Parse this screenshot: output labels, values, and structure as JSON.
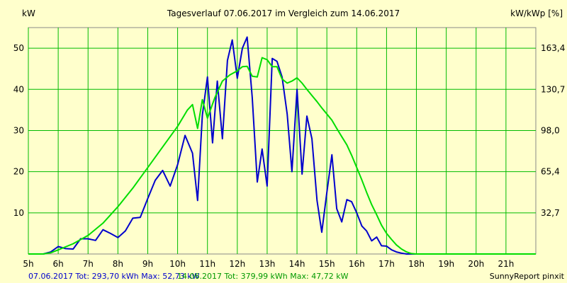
{
  "chart_data": {
    "type": "line",
    "title": "Tagesverlauf 07.06.2017 im Vergleich zum 14.06.2017",
    "ylabel_left": "kW",
    "ylabel_right": "kW/kWp [%]",
    "credit": "SunnyReport pinxit",
    "x_range": [
      5,
      22
    ],
    "x_ticks": [
      5,
      6,
      7,
      8,
      9,
      10,
      11,
      12,
      13,
      14,
      15,
      16,
      17,
      18,
      19,
      20,
      21
    ],
    "x_tick_labels": [
      "5h",
      "6h",
      "7h",
      "8h",
      "9h",
      "10h",
      "11h",
      "12h",
      "13h",
      "14h",
      "15h",
      "16h",
      "17h",
      "18h",
      "19h",
      "20h",
      "21h"
    ],
    "y_range": [
      0,
      55
    ],
    "y_ticks": [
      10,
      20,
      30,
      40,
      50
    ],
    "y_tick_labels": [
      "10",
      "20",
      "30",
      "40",
      "50"
    ],
    "y_right_ticks": [
      10,
      20,
      30,
      40,
      50
    ],
    "y_right_labels": [
      "32,7",
      "65,4",
      "98,0",
      "130,7",
      "163,4"
    ],
    "series": [
      {
        "name": "07.06.2017",
        "color": "#0000cc",
        "legend_text": "07.06.2017 Tot: 293,70 kWh Max: 52,73 kW",
        "x": [
          5.0,
          5.5,
          5.75,
          6.0,
          6.25,
          6.5,
          6.75,
          7.0,
          7.25,
          7.5,
          7.75,
          8.0,
          8.25,
          8.5,
          8.75,
          9.0,
          9.25,
          9.5,
          9.75,
          10.0,
          10.25,
          10.5,
          10.67,
          10.83,
          11.0,
          11.17,
          11.33,
          11.5,
          11.67,
          11.83,
          12.0,
          12.17,
          12.33,
          12.5,
          12.67,
          12.83,
          13.0,
          13.17,
          13.33,
          13.5,
          13.67,
          13.83,
          14.0,
          14.17,
          14.33,
          14.5,
          14.67,
          14.83,
          15.0,
          15.17,
          15.33,
          15.5,
          15.67,
          15.83,
          16.0,
          16.17,
          16.33,
          16.5,
          16.67,
          16.83,
          17.0,
          17.17,
          17.33,
          17.5,
          17.67,
          17.83,
          18.0,
          18.17,
          18.33,
          18.5,
          18.67,
          18.83,
          19.0,
          19.25,
          19.5,
          19.75,
          20.0,
          20.25,
          20.5,
          20.75,
          21.0,
          21.25,
          21.5,
          22.0
        ],
        "values": [
          0,
          0,
          0.5,
          1.8,
          1.3,
          1.2,
          3.7,
          3.7,
          3.3,
          5.9,
          5.0,
          4.0,
          5.6,
          8.7,
          8.9,
          13.5,
          17.9,
          20.3,
          16.5,
          21.7,
          28.8,
          24.5,
          13.0,
          33.7,
          43.0,
          27.0,
          42.0,
          28.0,
          47.0,
          52.0,
          42.7,
          50.0,
          52.7,
          38.0,
          17.5,
          25.5,
          16.5,
          47.5,
          46.8,
          43.0,
          34.0,
          20.0,
          40.0,
          19.4,
          33.5,
          28.0,
          13.0,
          5.3,
          15.0,
          24.1,
          11.0,
          7.8,
          13.2,
          12.7,
          10.0,
          6.8,
          5.6,
          3.2,
          4.1,
          2.0,
          1.9,
          1.0,
          0.5,
          0.2,
          0,
          0,
          0,
          0,
          0,
          0,
          0,
          0,
          0,
          0,
          0,
          0,
          0,
          0,
          0,
          0,
          0,
          0,
          0,
          0
        ]
      },
      {
        "name": "14.06.2017",
        "color": "#00dd00",
        "legend_text": "14.06.2017 Tot: 379,99 kWh Max: 47,72 kW",
        "x": [
          5.0,
          5.5,
          5.75,
          6.0,
          6.5,
          7.0,
          7.5,
          8.0,
          8.5,
          9.0,
          9.5,
          10.0,
          10.33,
          10.5,
          10.67,
          10.83,
          11.0,
          11.25,
          11.5,
          11.75,
          12.0,
          12.17,
          12.33,
          12.5,
          12.67,
          12.83,
          13.0,
          13.17,
          13.33,
          13.5,
          13.67,
          13.83,
          14.0,
          14.17,
          14.33,
          14.5,
          14.67,
          14.83,
          15.0,
          15.17,
          15.33,
          15.5,
          15.67,
          15.83,
          16.0,
          16.17,
          16.33,
          16.5,
          16.67,
          16.83,
          17.0,
          17.17,
          17.33,
          17.5,
          17.67,
          17.83,
          18.0,
          18.17,
          18.33,
          18.5,
          18.67,
          18.83,
          19.0,
          19.25,
          19.5,
          19.75,
          20.0,
          20.25,
          20.5,
          20.75,
          21.0,
          21.5,
          22.0
        ],
        "values": [
          0,
          0,
          0.3,
          1.0,
          2.5,
          4.5,
          7.5,
          11.5,
          16.0,
          21.0,
          26.0,
          31.0,
          35.0,
          36.3,
          30.5,
          37.5,
          33.0,
          38.0,
          42.0,
          43.5,
          44.5,
          45.5,
          45.6,
          43.2,
          43.0,
          47.7,
          47.2,
          45.5,
          45.5,
          42.5,
          41.5,
          42.0,
          42.8,
          41.5,
          40.0,
          38.5,
          37.0,
          35.5,
          34.0,
          32.5,
          30.5,
          28.5,
          26.5,
          24.0,
          21.0,
          18.0,
          15.0,
          12.0,
          9.5,
          7.0,
          5.0,
          3.5,
          2.2,
          1.2,
          0.5,
          0.1,
          0,
          0,
          0,
          0,
          0,
          0,
          0,
          0,
          0,
          0,
          0,
          0,
          0,
          0,
          0,
          0,
          0
        ]
      }
    ],
    "grid": true
  }
}
